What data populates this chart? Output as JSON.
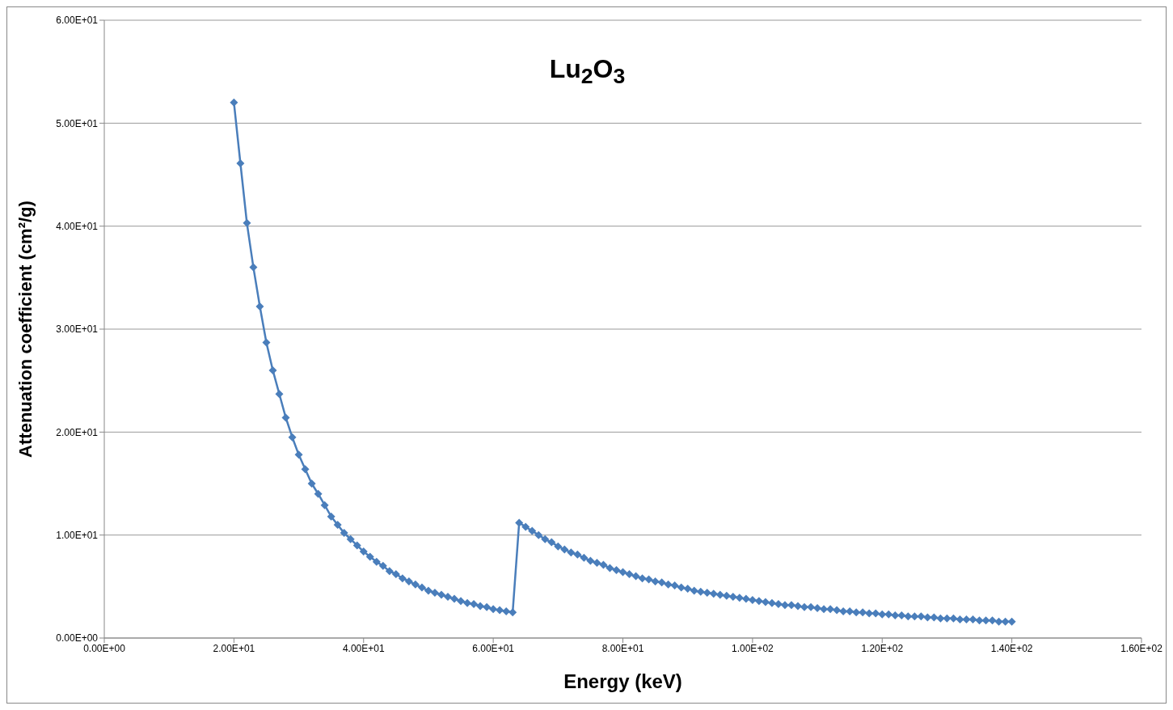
{
  "chart_data": {
    "type": "line",
    "title": "Lu$_{2}$O$_{3}$",
    "xlabel": "Energy (keV)",
    "ylabel": "Attenuation coefficient (cm²/g)",
    "x": [
      20,
      21,
      22,
      23,
      24,
      25,
      26,
      27,
      28,
      29,
      30,
      31,
      32,
      33,
      34,
      35,
      36,
      37,
      38,
      39,
      40,
      41,
      42,
      43,
      44,
      45,
      46,
      47,
      48,
      49,
      50,
      51,
      52,
      53,
      54,
      55,
      56,
      57,
      58,
      59,
      60,
      61,
      62,
      63,
      64,
      65,
      66,
      67,
      68,
      69,
      70,
      71,
      72,
      73,
      74,
      75,
      76,
      77,
      78,
      79,
      80,
      81,
      82,
      83,
      84,
      85,
      86,
      87,
      88,
      89,
      90,
      91,
      92,
      93,
      94,
      95,
      96,
      97,
      98,
      99,
      100,
      101,
      102,
      103,
      104,
      105,
      106,
      107,
      108,
      109,
      110,
      111,
      112,
      113,
      114,
      115,
      116,
      117,
      118,
      119,
      120,
      121,
      122,
      123,
      124,
      125,
      126,
      127,
      128,
      129,
      130,
      131,
      132,
      133,
      134,
      135,
      136,
      137,
      138,
      139,
      140
    ],
    "series": [
      {
        "color": "#4a7ebb",
        "values": [
          52.0,
          46.1,
          40.3,
          36.0,
          32.2,
          28.7,
          26.0,
          23.7,
          21.4,
          19.5,
          17.8,
          16.4,
          15.0,
          14.0,
          12.9,
          11.8,
          11.0,
          10.2,
          9.6,
          9.0,
          8.4,
          7.9,
          7.4,
          7.0,
          6.5,
          6.2,
          5.8,
          5.5,
          5.2,
          4.9,
          4.6,
          4.4,
          4.2,
          4.0,
          3.8,
          3.6,
          3.4,
          3.3,
          3.1,
          3.0,
          2.8,
          2.7,
          2.6,
          2.5,
          11.2,
          10.8,
          10.4,
          10.0,
          9.6,
          9.3,
          8.9,
          8.6,
          8.3,
          8.1,
          7.8,
          7.5,
          7.3,
          7.1,
          6.8,
          6.6,
          6.4,
          6.2,
          6.0,
          5.8,
          5.7,
          5.5,
          5.4,
          5.2,
          5.1,
          4.9,
          4.8,
          4.6,
          4.5,
          4.4,
          4.3,
          4.2,
          4.1,
          4.0,
          3.9,
          3.8,
          3.7,
          3.6,
          3.5,
          3.4,
          3.3,
          3.2,
          3.2,
          3.1,
          3.0,
          3.0,
          2.9,
          2.8,
          2.8,
          2.7,
          2.6,
          2.6,
          2.5,
          2.5,
          2.4,
          2.4,
          2.3,
          2.3,
          2.2,
          2.2,
          2.1,
          2.1,
          2.1,
          2.0,
          2.0,
          1.9,
          1.9,
          1.9,
          1.8,
          1.8,
          1.8,
          1.7,
          1.7,
          1.7,
          1.6,
          1.6,
          1.6
        ]
      }
    ],
    "xlim": [
      0,
      160
    ],
    "xticks": [
      {
        "value": 0,
        "label": "0.00E+00"
      },
      {
        "value": 20,
        "label": "2.00E+01"
      },
      {
        "value": 40,
        "label": "4.00E+01"
      },
      {
        "value": 60,
        "label": "6.00E+01"
      },
      {
        "value": 80,
        "label": "8.00E+01"
      },
      {
        "value": 100,
        "label": "1.00E+02"
      },
      {
        "value": 120,
        "label": "1.20E+02"
      },
      {
        "value": 140,
        "label": "1.40E+02"
      },
      {
        "value": 160,
        "label": "1.60E+02"
      }
    ],
    "ylim": [
      0,
      60
    ],
    "yticks": [
      {
        "value": 0,
        "label": "0.00E+00"
      },
      {
        "value": 10,
        "label": "1.00E+01"
      },
      {
        "value": 20,
        "label": "2.00E+01"
      },
      {
        "value": 30,
        "label": "3.00E+01"
      },
      {
        "value": 40,
        "label": "4.00E+01"
      },
      {
        "value": 50,
        "label": "5.00E+01"
      },
      {
        "value": 60,
        "label": "6.00E+01"
      }
    ],
    "grid": "y",
    "marker": "diamond",
    "line_style": "solid"
  }
}
